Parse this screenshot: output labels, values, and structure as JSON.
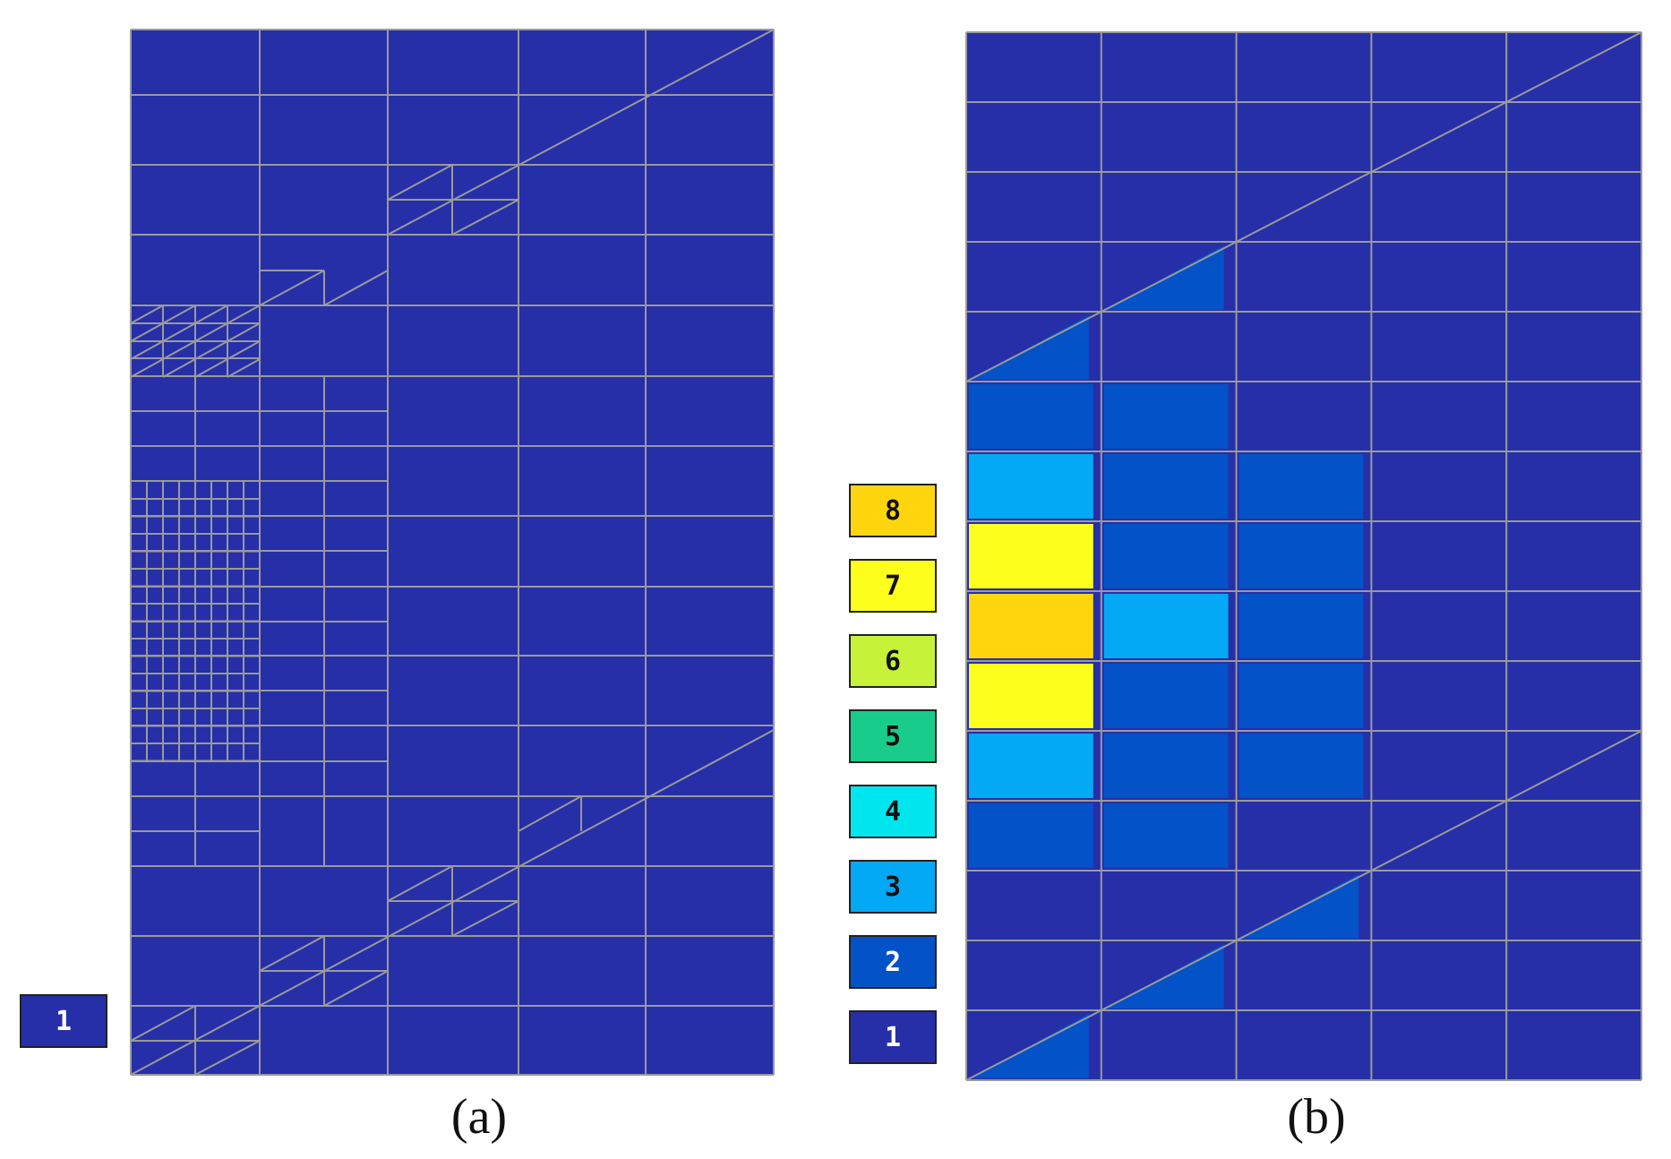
{
  "colors": {
    "background": "#262fa8",
    "grid": "#9a9a9a",
    "levels": {
      "1": "#262fa8",
      "2": "#0452c7",
      "3": "#03a9f4",
      "4": "#00e6ee",
      "5": "#18cc8c",
      "6": "#c6f23a",
      "7": "#ffff1e",
      "8": "#ffd60d"
    }
  },
  "panel_a": {
    "caption": "(a)",
    "legend": [
      {
        "label": "1",
        "level": "1"
      }
    ]
  },
  "panel_b": {
    "caption": "(b)",
    "legend": [
      {
        "label": "8",
        "level": "8"
      },
      {
        "label": "7",
        "level": "7"
      },
      {
        "label": "6",
        "level": "6"
      },
      {
        "label": "5",
        "level": "5"
      },
      {
        "label": "4",
        "level": "4"
      },
      {
        "label": "3",
        "level": "3"
      },
      {
        "label": "2",
        "level": "2"
      },
      {
        "label": "1",
        "level": "1"
      }
    ],
    "cells": [
      {
        "col": 0,
        "row": 6,
        "level": "3"
      },
      {
        "col": 0,
        "row": 7,
        "level": "7"
      },
      {
        "col": 0,
        "row": 8,
        "level": "8"
      },
      {
        "col": 0,
        "row": 9,
        "level": "7"
      },
      {
        "col": 0,
        "row": 10,
        "level": "3"
      },
      {
        "col": 0,
        "row": 5,
        "level": "2"
      },
      {
        "col": 0,
        "row": 11,
        "level": "2"
      },
      {
        "col": 1,
        "row": 5,
        "level": "2"
      },
      {
        "col": 1,
        "row": 6,
        "level": "2"
      },
      {
        "col": 1,
        "row": 7,
        "level": "2"
      },
      {
        "col": 1,
        "row": 8,
        "level": "3"
      },
      {
        "col": 1,
        "row": 9,
        "level": "2"
      },
      {
        "col": 1,
        "row": 10,
        "level": "2"
      },
      {
        "col": 1,
        "row": 11,
        "level": "2"
      },
      {
        "col": 2,
        "row": 6,
        "level": "2"
      },
      {
        "col": 2,
        "row": 7,
        "level": "2"
      },
      {
        "col": 2,
        "row": 8,
        "level": "2"
      },
      {
        "col": 2,
        "row": 9,
        "level": "2"
      },
      {
        "col": 2,
        "row": 10,
        "level": "2"
      }
    ],
    "wedges": [
      {
        "col": 1,
        "row": 3,
        "level": "2"
      },
      {
        "col": 0,
        "row": 4,
        "level": "2"
      },
      {
        "col": 2,
        "row": 12,
        "level": "2"
      },
      {
        "col": 1,
        "row": 13,
        "level": "2"
      },
      {
        "col": 0,
        "row": 14,
        "level": "2"
      }
    ]
  }
}
